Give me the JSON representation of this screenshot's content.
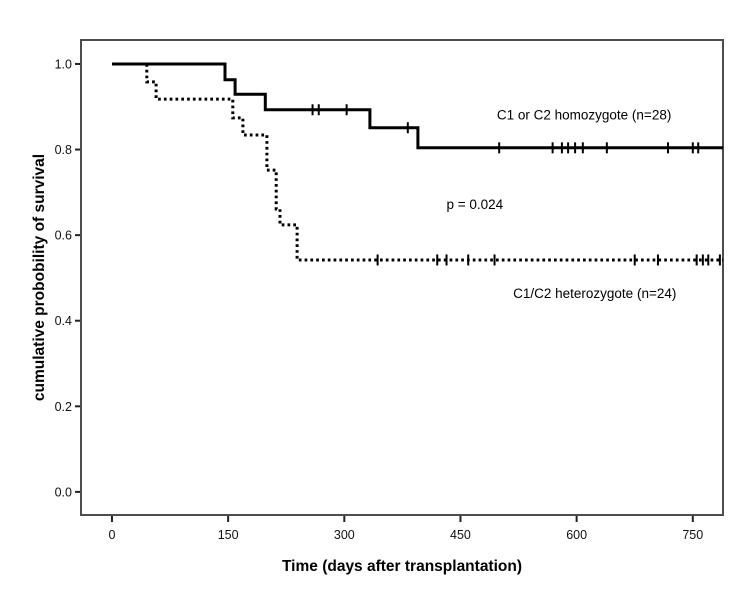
{
  "figure": {
    "background": "#ffffff",
    "p_value_label": "p = 0.024"
  },
  "chart_data": {
    "type": "line",
    "subtype": "kaplan-meier-step",
    "title": "",
    "xlabel": "Time (days after transplantation)",
    "ylabel": "cumulative probobility of survival",
    "x_ticks": [
      0,
      150,
      300,
      450,
      600,
      750
    ],
    "y_ticks": [
      0.0,
      0.2,
      0.4,
      0.6,
      0.8,
      1.0
    ],
    "y_tick_labels": [
      "0.0",
      "0.2",
      "0.4",
      "0.6",
      "0.8",
      "1.0"
    ],
    "xlim": [
      -40,
      789
    ],
    "ylim": [
      -0.054,
      1.056
    ],
    "grid": false,
    "legend_position": "inline-annotations",
    "series": [
      {
        "name": "C1 or C2 homozygote",
        "n": 28,
        "line_style": "solid",
        "color": "#000000",
        "steps": [
          [
            0,
            1.0
          ],
          [
            146,
            0.963
          ],
          [
            159,
            0.929
          ],
          [
            198,
            0.893
          ],
          [
            333,
            0.851
          ],
          [
            395,
            0.804
          ]
        ],
        "end_day": 789,
        "censor_marks": [
          [
            259,
            0.893
          ],
          [
            267,
            0.893
          ],
          [
            303,
            0.893
          ],
          [
            382,
            0.851
          ],
          [
            500,
            0.804
          ],
          [
            569,
            0.804
          ],
          [
            581,
            0.804
          ],
          [
            589,
            0.804
          ],
          [
            598,
            0.804
          ],
          [
            608,
            0.804
          ],
          [
            639,
            0.804
          ],
          [
            718,
            0.804
          ],
          [
            750,
            0.804
          ],
          [
            757,
            0.804
          ]
        ]
      },
      {
        "name": "C1/C2 heterozygote",
        "n": 24,
        "line_style": "dotted",
        "color": "#000000",
        "steps": [
          [
            0,
            1.0
          ],
          [
            45,
            0.958
          ],
          [
            57,
            0.918
          ],
          [
            156,
            0.874
          ],
          [
            169,
            0.834
          ],
          [
            200,
            0.752
          ],
          [
            212,
            0.661
          ],
          [
            217,
            0.624
          ],
          [
            239,
            0.542
          ]
        ],
        "end_day": 789,
        "censor_marks": [
          [
            343,
            0.542
          ],
          [
            420,
            0.542
          ],
          [
            432,
            0.542
          ],
          [
            460,
            0.542
          ],
          [
            494,
            0.542
          ],
          [
            675,
            0.542
          ],
          [
            705,
            0.542
          ],
          [
            755,
            0.542
          ],
          [
            763,
            0.542
          ],
          [
            770,
            0.542
          ],
          [
            785,
            0.542
          ]
        ]
      }
    ],
    "annotations": [
      {
        "text": "C1 or C2 homozygote (n=28)",
        "x_day": 497,
        "y_surv": 0.87,
        "anchor": "start",
        "name": "homozygote-series-label"
      },
      {
        "text": "p = 0.024",
        "x_day": 432,
        "y_surv": 0.661,
        "anchor": "start",
        "name": "p-value-label"
      },
      {
        "text": "C1/C2 heterozygote (n=24)",
        "x_day": 518,
        "y_surv": 0.453,
        "anchor": "start",
        "name": "heterozygote-series-label"
      }
    ]
  },
  "colors": {
    "curve": "#000000",
    "frame": "#4d4d4d",
    "tick": "#222222",
    "text": "#000000",
    "background": "#ffffff"
  }
}
